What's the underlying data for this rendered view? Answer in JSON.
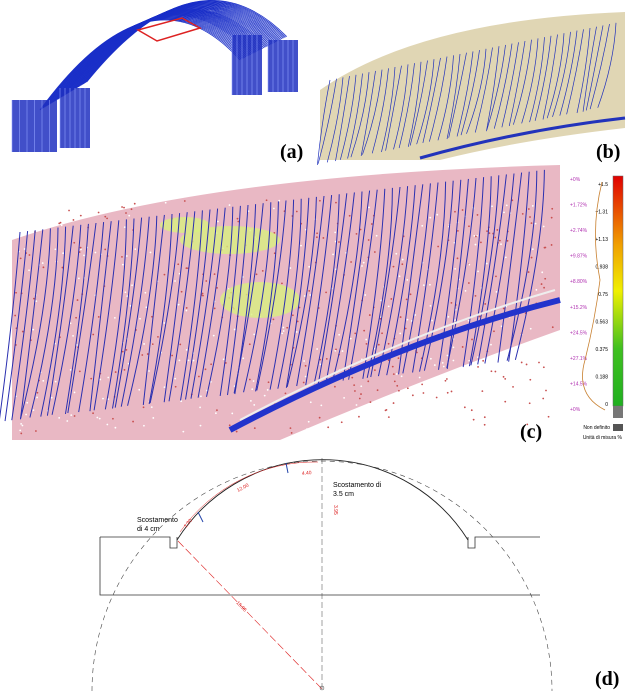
{
  "panels": [
    {
      "label": "(a)"
    },
    {
      "label": "(b)"
    },
    {
      "label": "(c)"
    },
    {
      "label": "(d)"
    }
  ],
  "legend": {
    "values": [
      "+1.5",
      "+1.31",
      "+1.13",
      "0.938",
      "0.75",
      "0.563",
      "0.375",
      "0.188",
      "0"
    ],
    "percent": [
      "+0%",
      "+1.72%",
      "+2.74%",
      "+9.87%",
      "+8.80%",
      "+15.2%",
      "+24.5%",
      "+27.1%",
      "+14.5%",
      "+0%"
    ],
    "undefined": "Non definito",
    "unit": "Unità di misura  %"
  },
  "diagram": {
    "annotations": [
      [
        "Scostamento",
        "di 4 cm"
      ],
      [
        "Scostamento di",
        "3.5 cm"
      ]
    ],
    "dimensions": [
      "1.20",
      "12.00",
      "4.40",
      "3.95",
      "15.95"
    ]
  }
}
